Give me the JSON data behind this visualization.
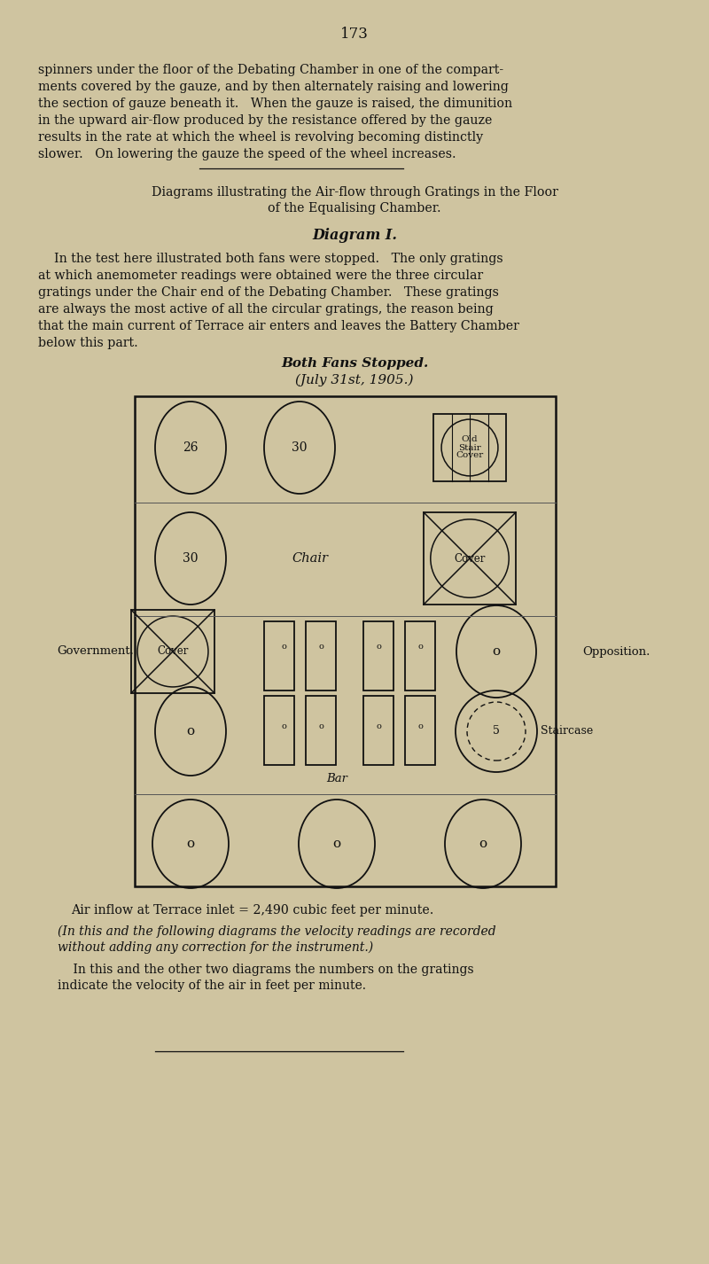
{
  "page_number": "173",
  "bg_color": "#cfc4a0",
  "text_color": "#111111",
  "para1_lines": [
    "spinners under the floor of the Debating Chamber in one of the compart-",
    "ments covered by the gauze, and by then alternately raising and lowering",
    "the section of gauze beneath it.   When the gauze is raised, the dimunition",
    "in the upward air-flow produced by the resistance offered by the gauze",
    "results in the rate at which the wheel is revolving becoming distinctly",
    "slower.   On lowering the gauze the speed of the wheel increases."
  ],
  "section_title1": "Diagrams illustrating the Air-flow through Gratings in the Floor",
  "section_title2": "of the Equalising Chamber.",
  "diagram_label": "Diagram I.",
  "diag_para_lines": [
    "    In the test here illustrated both fans were stopped.   The only gratings",
    "at which anemometer readings were obtained were the three circular",
    "gratings under the Chair end of the Debating Chamber.   These gratings",
    "are always the most active of all the circular gratings, the reason being",
    "that the main current of Terrace air enters and leaves the Battery Chamber",
    "below this part."
  ],
  "subtitle1": "Both Fans Stopped.",
  "subtitle2": "(July 31st, 1905.)",
  "gov_label": "Government.",
  "opp_label": "Opposition.",
  "caption1": "Air inflow at Terrace inlet = 2,490 cubic feet per minute.",
  "caption2a": "(In this and the following diagrams the velocity readings are recorded",
  "caption2b": "without adding any correction for the instrument.)",
  "caption3a": "    In this and the other two diagrams the numbers on the gratings",
  "caption3b": "indicate the velocity of the air in feet per minute."
}
